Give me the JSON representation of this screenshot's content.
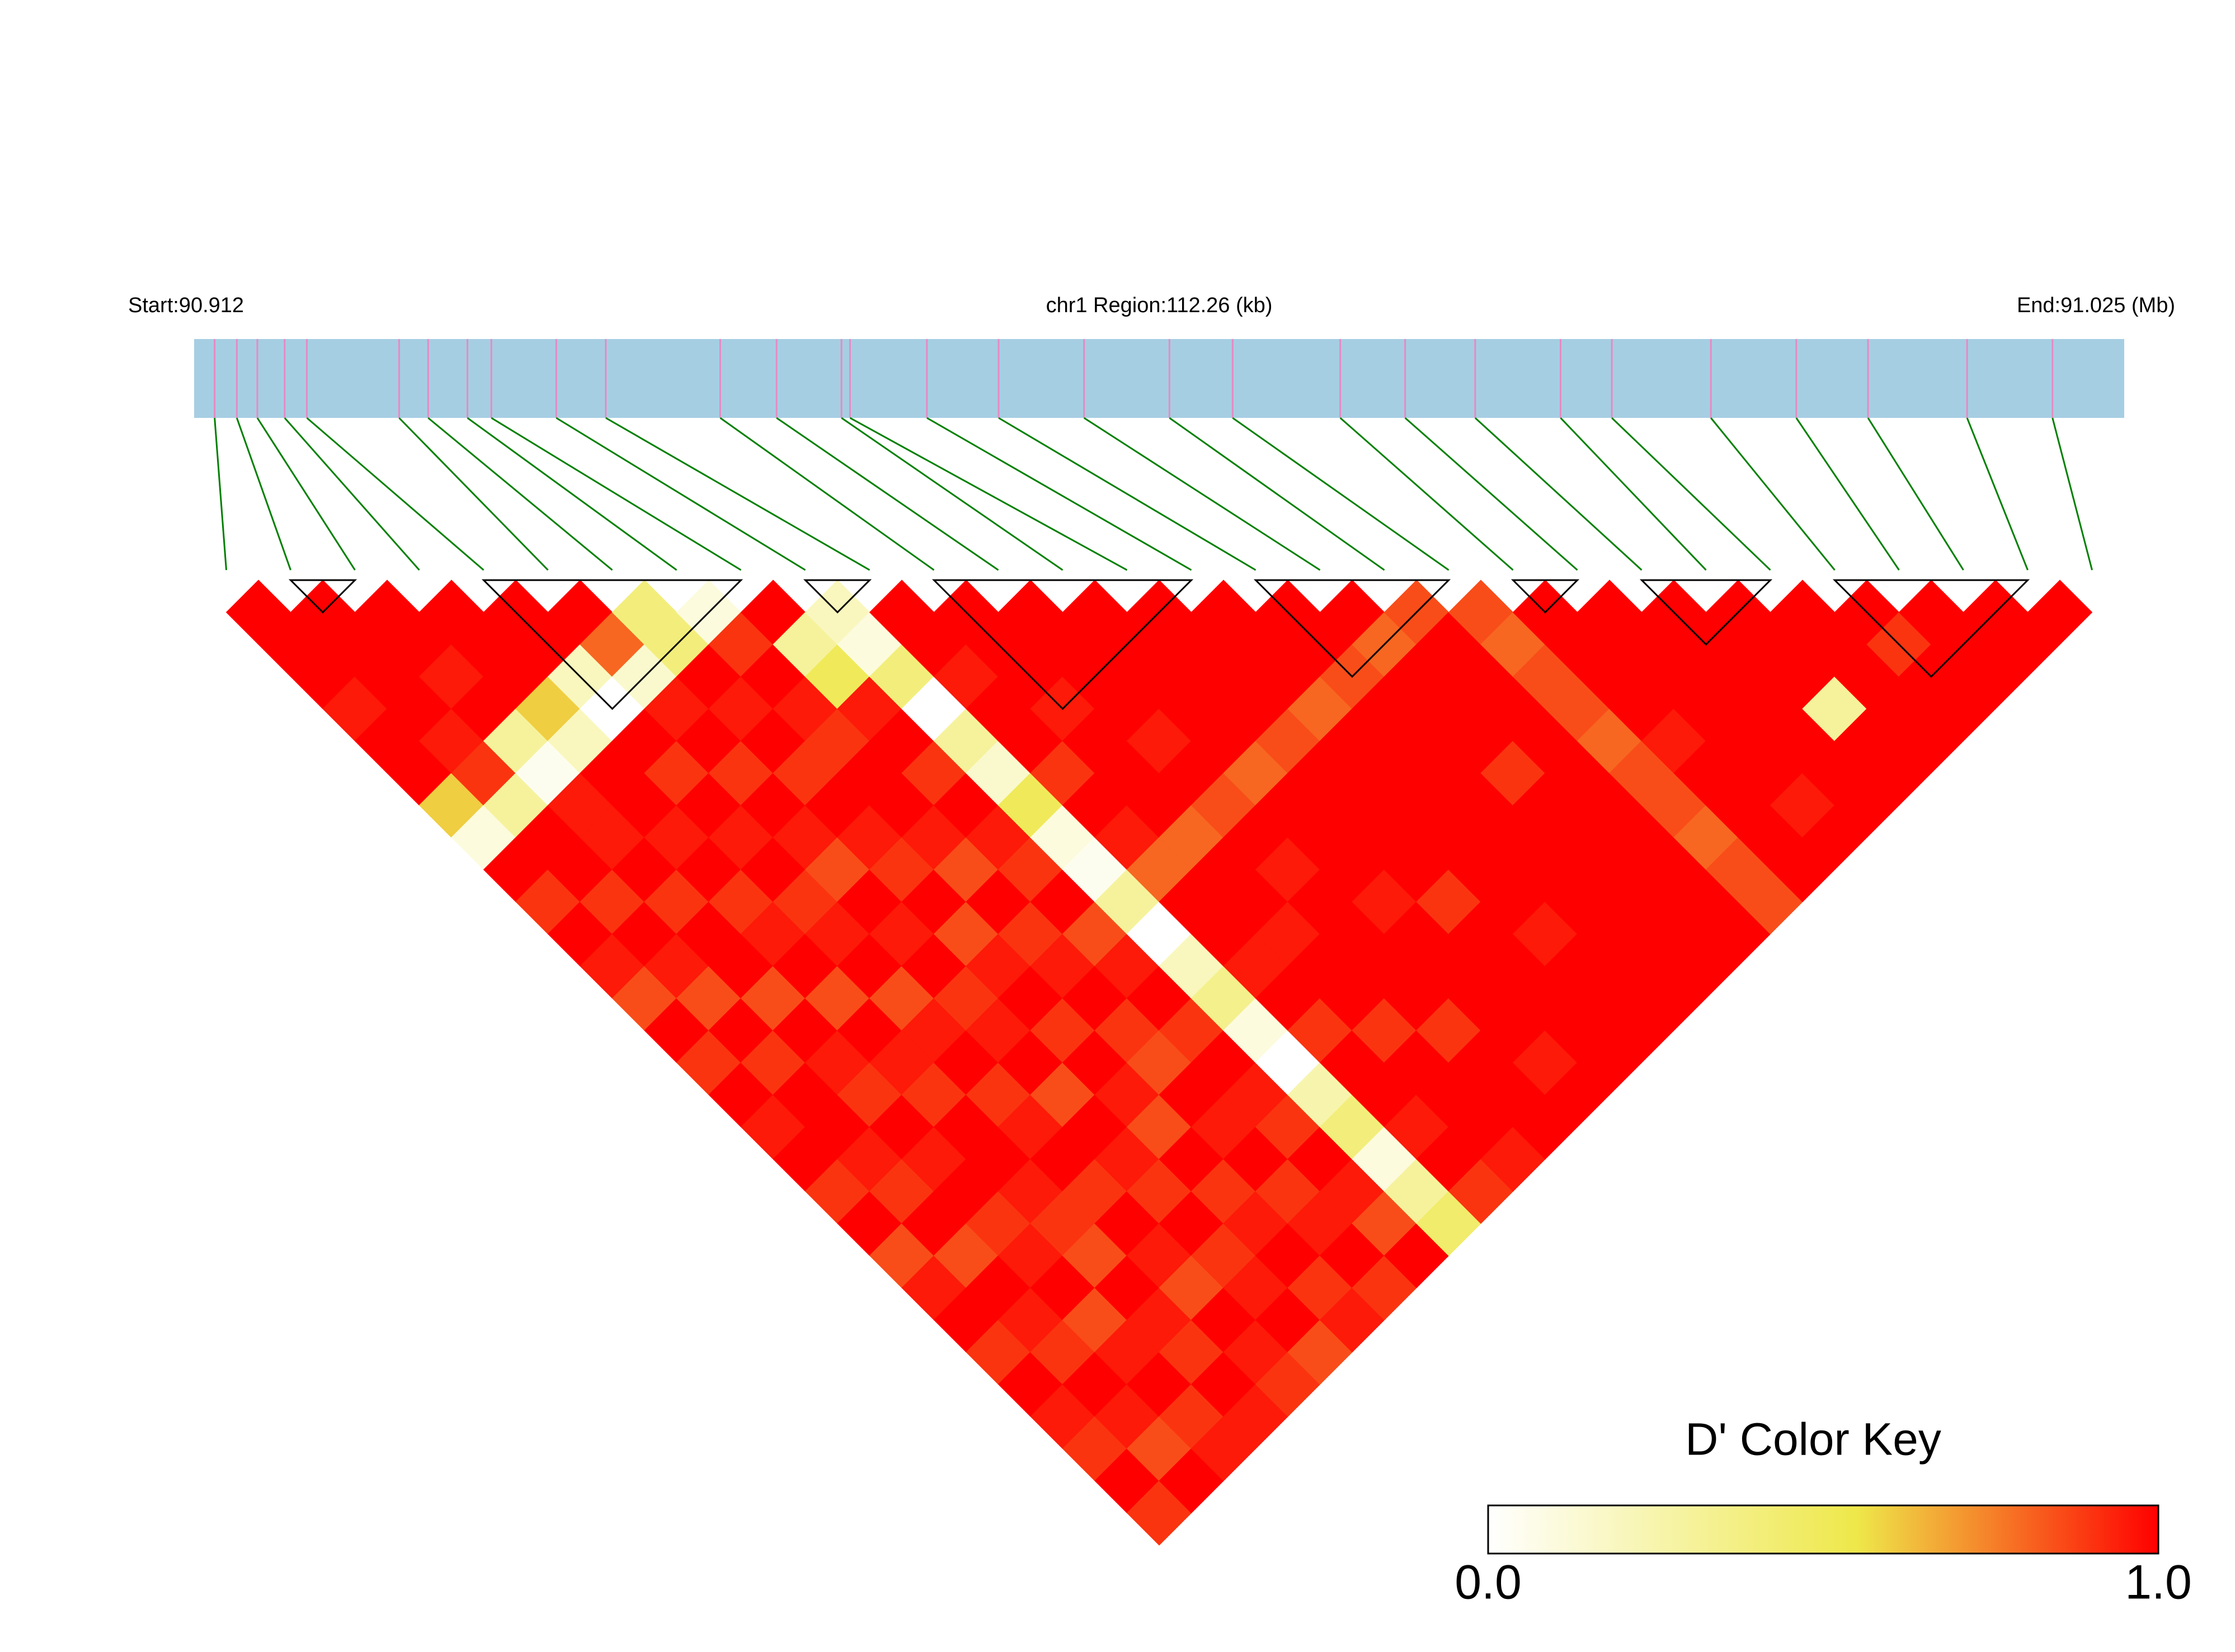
{
  "chart_data": {
    "type": "ld_heatmap",
    "start_label": "Start:90.912",
    "title": "chr1 Region:112.26 (kb)",
    "end_label": "End:91.025 (Mb)",
    "xlim": [
      90.912,
      91.025
    ],
    "positions": [
      90.9132,
      90.9145,
      90.9157,
      90.9173,
      90.9186,
      90.924,
      90.9257,
      90.928,
      90.9294,
      90.9332,
      90.9361,
      90.9428,
      90.9461,
      90.9499,
      90.9504,
      90.9549,
      90.9591,
      90.9641,
      90.9691,
      90.9728,
      90.9791,
      90.9829,
      90.987,
      90.992,
      90.995,
      91.0008,
      91.0058,
      91.01,
      91.0158,
      91.0208
    ],
    "dprime": [
      [
        1,
        1,
        1,
        0.95,
        1,
        1,
        0.6,
        0.1,
        1,
        0.9,
        1,
        0.95,
        0.85,
        1,
        0.9,
        1,
        0.95,
        1,
        0.9,
        1,
        0.85,
        0.95,
        1,
        0.9,
        1,
        0.95,
        0.9,
        1,
        0.9
      ],
      [
        1,
        1,
        1,
        1,
        0.95,
        0.9,
        0.3,
        1,
        1,
        0.9,
        1,
        0.95,
        0.85,
        1,
        0.9,
        1,
        1,
        0.95,
        0.9,
        1,
        0.85,
        1,
        0.95,
        0.9,
        1,
        0.95,
        0.85,
        1
      ],
      [
        1,
        1,
        0.95,
        1,
        0.3,
        0.05,
        0.95,
        0.95,
        1,
        0.9,
        1,
        1,
        0.85,
        1,
        0.95,
        0.9,
        1,
        0.95,
        1,
        0.9,
        0.95,
        1,
        0.85,
        0.95,
        1,
        0.9,
        0.95
      ],
      [
        1,
        1,
        1,
        0.6,
        0.2,
        1,
        1,
        0.95,
        1,
        0.9,
        0.95,
        1,
        0.85,
        1,
        0.95,
        0.9,
        1,
        1,
        0.95,
        0.9,
        0.85,
        1,
        0.95,
        0.9,
        1,
        0.95
      ],
      [
        1,
        1,
        0.2,
        0,
        1,
        0.9,
        1,
        0.95,
        1,
        0.9,
        0.95,
        1,
        0.85,
        0.95,
        1,
        0.9,
        0.95,
        1,
        0.9,
        1,
        0.95,
        0.85,
        1,
        0.95,
        0.9
      ],
      [
        1,
        0.8,
        0.15,
        0.95,
        1,
        0.9,
        1,
        0.95,
        0.85,
        1,
        0.95,
        1,
        0.9,
        0.95,
        1,
        0.85,
        1,
        0.95,
        0.9,
        1,
        0.9,
        0.95,
        1,
        0.85
      ],
      [
        0.4,
        0.4,
        1,
        0.95,
        1,
        0.9,
        1,
        0.95,
        0.9,
        1,
        0.85,
        0.95,
        1,
        0.9,
        1,
        0.95,
        0.85,
        1,
        0.9,
        0.95,
        1,
        0.9,
        0.95
      ],
      [
        0.1,
        0.9,
        1,
        0.95,
        0.9,
        1,
        1,
        0.95,
        0.85,
        1,
        0.9,
        0.95,
        1,
        0.9,
        0.85,
        1,
        0.95,
        1,
        0.9,
        0.95,
        1,
        0.9
      ],
      [
        1,
        0.3,
        0.5,
        0.95,
        1,
        0.9,
        1,
        0.95,
        0.9,
        1,
        0.85,
        0.95,
        1,
        0.9,
        1,
        0.95,
        0.9,
        1,
        0.95,
        0.85,
        1
      ],
      [
        0.2,
        0.1,
        0.4,
        0,
        0.3,
        0.15,
        0.5,
        0.1,
        0.05,
        0.3,
        0,
        0.2,
        0.35,
        0.1,
        0,
        0.25,
        0.4,
        0.1,
        0.3,
        0.45
      ],
      [
        1,
        1,
        0.95,
        1,
        1,
        0.9,
        1,
        0.95,
        0.8,
        1,
        1,
        0.95,
        1,
        0.9,
        1,
        1,
        0.95,
        1,
        0.9
      ],
      [
        1,
        1,
        1,
        0.95,
        1,
        1,
        1,
        0.8,
        1,
        1,
        0.95,
        1,
        1,
        0.9,
        1,
        1,
        1,
        0.95
      ],
      [
        1,
        1,
        1,
        1,
        0.95,
        1,
        0.85,
        1,
        0.95,
        1,
        1,
        1,
        1,
        0.9,
        1,
        1,
        1
      ],
      [
        1,
        1,
        1,
        1,
        1,
        0.8,
        1,
        1,
        1,
        0.95,
        1,
        1,
        1,
        1,
        0.95,
        1
      ],
      [
        1,
        1,
        1,
        1,
        0.85,
        1,
        1,
        1,
        1,
        0.9,
        1,
        1,
        1,
        1,
        1
      ],
      [
        1,
        1,
        1,
        0.8,
        1,
        1,
        1,
        1,
        1,
        1,
        0.95,
        1,
        1,
        1
      ],
      [
        1,
        1,
        0.85,
        1,
        1,
        1,
        1,
        1,
        1,
        1,
        1,
        1,
        1
      ],
      [
        1,
        0.8,
        1,
        1,
        1,
        0.9,
        1,
        1,
        1,
        1,
        1,
        1
      ],
      [
        0.85,
        1,
        1,
        1,
        1,
        1,
        1,
        1,
        1,
        1,
        1
      ],
      [
        0.85,
        0.8,
        0.85,
        0.85,
        0.8,
        0.85,
        0.85,
        0.8,
        0.85,
        0.85
      ],
      [
        1,
        1,
        1,
        1,
        0.95,
        1,
        1,
        1,
        1
      ],
      [
        1,
        1,
        1,
        1,
        1,
        1,
        0.95,
        1
      ],
      [
        1,
        1,
        1,
        1,
        1,
        1,
        1
      ],
      [
        1,
        1,
        1,
        0.3,
        1,
        1
      ],
      [
        1,
        1,
        1,
        1,
        1
      ],
      [
        1,
        0.9,
        1,
        1
      ],
      [
        1,
        1,
        1
      ],
      [
        1,
        1
      ],
      [
        1
      ]
    ],
    "blocks": [
      [
        1,
        2
      ],
      [
        4,
        8
      ],
      [
        9,
        10
      ],
      [
        11,
        15
      ],
      [
        16,
        19
      ],
      [
        20,
        21
      ],
      [
        22,
        24
      ],
      [
        25,
        28
      ]
    ],
    "colors": {
      "bar": "#a6cee3",
      "snp": "#e78ac3",
      "link": "#008000",
      "block": "#000000"
    },
    "color_key": {
      "title": "D' Color Key",
      "lim": [
        0,
        1
      ],
      "stops": [
        {
          "value": 0,
          "color": "#ffffff"
        },
        {
          "value": 0.55,
          "color": "#eee84a"
        },
        {
          "value": 1,
          "color": "#ff0000"
        }
      ],
      "ticks": [
        {
          "value": 0,
          "label": "0.0"
        },
        {
          "value": 1,
          "label": "1.0"
        }
      ]
    }
  }
}
